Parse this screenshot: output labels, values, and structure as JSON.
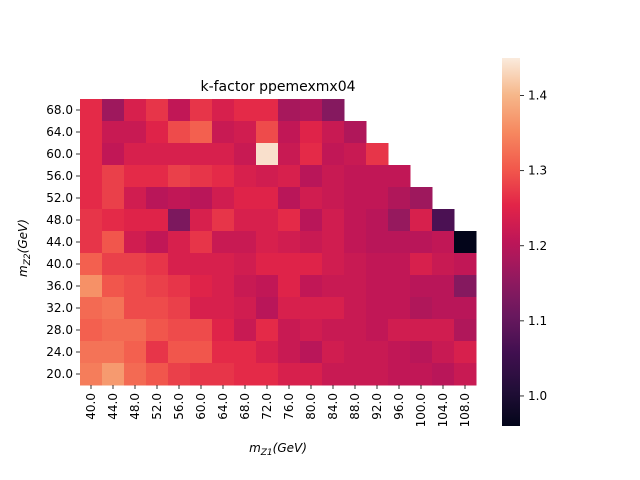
{
  "chart_data": {
    "type": "heatmap",
    "title": "k-factor ppemexmx04",
    "xlabel": "m_Z1(GeV)",
    "ylabel": "m_Z2(GeV)",
    "x_categories": [
      "40.0",
      "44.0",
      "48.0",
      "52.0",
      "56.0",
      "60.0",
      "64.0",
      "68.0",
      "72.0",
      "76.0",
      "80.0",
      "84.0",
      "88.0",
      "92.0",
      "96.0",
      "100.0",
      "104.0",
      "108.0"
    ],
    "y_categories": [
      "68.0",
      "64.0",
      "60.0",
      "56.0",
      "52.0",
      "48.0",
      "44.0",
      "40.0",
      "36.0",
      "32.0",
      "28.0",
      "24.0",
      "20.0"
    ],
    "values": [
      [
        1.26,
        1.17,
        1.24,
        1.27,
        1.21,
        1.27,
        1.24,
        1.26,
        1.26,
        1.18,
        1.19,
        1.14,
        null,
        null,
        null,
        null,
        null,
        null
      ],
      [
        1.26,
        1.22,
        1.22,
        1.25,
        1.29,
        1.31,
        1.22,
        1.23,
        1.29,
        1.21,
        1.25,
        1.22,
        1.19,
        null,
        null,
        null,
        null,
        null
      ],
      [
        1.26,
        1.21,
        1.24,
        1.24,
        1.24,
        1.24,
        1.24,
        1.22,
        1.44,
        1.22,
        1.26,
        1.21,
        1.22,
        1.27,
        null,
        null,
        null,
        null
      ],
      [
        1.26,
        1.28,
        1.26,
        1.26,
        1.28,
        1.27,
        1.26,
        1.24,
        1.23,
        1.24,
        1.2,
        1.22,
        1.21,
        1.21,
        1.21,
        null,
        null,
        null
      ],
      [
        1.26,
        1.28,
        1.23,
        1.2,
        1.21,
        1.2,
        1.23,
        1.25,
        1.25,
        1.2,
        1.23,
        1.22,
        1.21,
        1.21,
        1.19,
        1.17,
        null,
        null
      ],
      [
        1.27,
        1.26,
        1.25,
        1.25,
        1.13,
        1.24,
        1.27,
        1.24,
        1.24,
        1.26,
        1.2,
        1.23,
        1.21,
        1.2,
        1.16,
        1.24,
        1.07,
        null
      ],
      [
        1.27,
        1.3,
        1.23,
        1.21,
        1.24,
        1.27,
        1.22,
        1.22,
        1.24,
        1.23,
        1.22,
        1.23,
        1.21,
        1.2,
        1.2,
        1.2,
        1.21,
        0.96
      ],
      [
        1.31,
        1.28,
        1.28,
        1.27,
        1.24,
        1.24,
        1.24,
        1.23,
        1.25,
        1.25,
        1.25,
        1.23,
        1.22,
        1.21,
        1.21,
        1.24,
        1.22,
        1.21
      ],
      [
        1.36,
        1.3,
        1.29,
        1.28,
        1.27,
        1.25,
        1.24,
        1.22,
        1.21,
        1.25,
        1.21,
        1.22,
        1.22,
        1.21,
        1.21,
        1.2,
        1.2,
        1.14
      ],
      [
        1.32,
        1.33,
        1.29,
        1.29,
        1.28,
        1.24,
        1.24,
        1.23,
        1.2,
        1.24,
        1.24,
        1.24,
        1.22,
        1.21,
        1.21,
        1.19,
        1.2,
        1.2
      ],
      [
        1.31,
        1.32,
        1.32,
        1.3,
        1.29,
        1.29,
        1.25,
        1.22,
        1.26,
        1.22,
        1.23,
        1.22,
        1.22,
        1.21,
        1.23,
        1.23,
        1.23,
        1.19
      ],
      [
        1.33,
        1.33,
        1.31,
        1.27,
        1.3,
        1.3,
        1.26,
        1.26,
        1.24,
        1.22,
        1.2,
        1.23,
        1.22,
        1.22,
        1.21,
        1.2,
        1.22,
        1.24
      ],
      [
        1.34,
        1.37,
        1.32,
        1.3,
        1.28,
        1.27,
        1.27,
        1.26,
        1.26,
        1.24,
        1.24,
        1.22,
        1.22,
        1.22,
        1.21,
        1.21,
        1.2,
        1.22
      ]
    ],
    "colorbar": {
      "vmin": 0.96,
      "vmax": 1.45,
      "ticks": [
        "1.0",
        "1.1",
        "1.2",
        "1.3",
        "1.4"
      ]
    }
  }
}
